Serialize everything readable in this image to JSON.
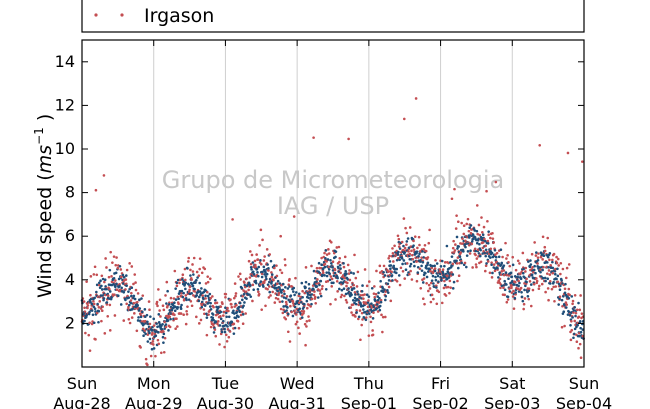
{
  "chart_data": {
    "type": "scatter",
    "ylabel": "Wind speed (ms⁻¹)",
    "ylabel_parts": {
      "main": "Wind speed (",
      "unit_base": "ms",
      "unit_exp": "−1",
      "close": ")"
    },
    "ylim": [
      0,
      15
    ],
    "yticks": [
      2,
      4,
      6,
      8,
      10,
      12,
      14
    ],
    "xlim": [
      "2016-08-28",
      "2016-09-04"
    ],
    "xticks": [
      {
        "date": "2016-08-28",
        "day": "Sun",
        "label": "Aug-28"
      },
      {
        "date": "2016-08-29",
        "day": "Mon",
        "label": "Aug-29"
      },
      {
        "date": "2016-08-30",
        "day": "Tue",
        "label": "Aug-30"
      },
      {
        "date": "2016-08-31",
        "day": "Wed",
        "label": "Aug-31"
      },
      {
        "date": "2016-09-01",
        "day": "Thu",
        "label": "Sep-01"
      },
      {
        "date": "2016-09-02",
        "day": "Fri",
        "label": "Sep-02"
      },
      {
        "date": "2016-09-03",
        "day": "Sat",
        "label": "Sep-03"
      },
      {
        "date": "2016-09-04",
        "day": "Sun",
        "label": "Sep-04"
      }
    ],
    "grid": "vertical",
    "legend_position": "top",
    "watermark": [
      "Grupo de Micrometeorologia",
      "IAG / USP"
    ],
    "series": [
      {
        "name": "Irgason",
        "color": "#c44e52",
        "marker": "dot"
      },
      {
        "name": "",
        "color": "#1f4e79",
        "marker": "dot"
      }
    ],
    "daily_profile": [
      {
        "date": "2016-08-28",
        "mean": 3.3,
        "max": 9.6
      },
      {
        "date": "2016-08-29",
        "mean": 2.5,
        "max": 5.0
      },
      {
        "date": "2016-08-30",
        "mean": 3.0,
        "max": 7.3
      },
      {
        "date": "2016-08-31",
        "mean": 3.8,
        "max": 10.7
      },
      {
        "date": "2016-09-01",
        "mean": 3.5,
        "max": 12.8
      },
      {
        "date": "2016-09-02",
        "mean": 5.2,
        "max": 8.8
      },
      {
        "date": "2016-09-03",
        "mean": 4.8,
        "max": 10.2
      },
      {
        "date": "2016-09-04",
        "mean": 2.5,
        "max": 4.0
      }
    ]
  }
}
